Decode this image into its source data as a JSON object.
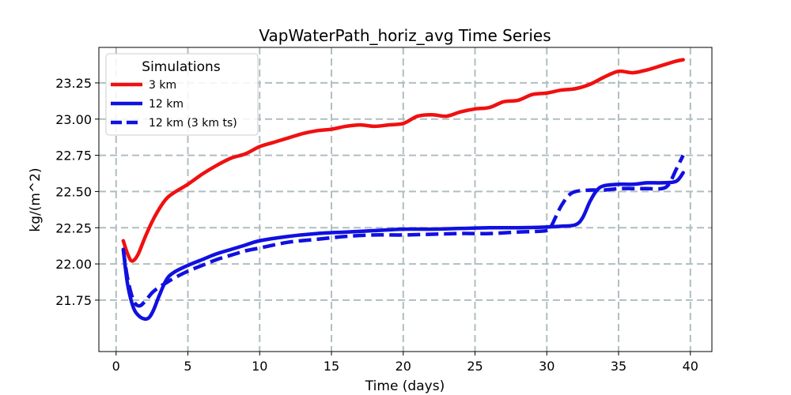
{
  "chart_data": {
    "type": "line",
    "title": "VapWaterPath_horiz_avg Time Series",
    "xlabel": "Time (days)",
    "ylabel": "kg/(m^2)",
    "xlim": [
      -1.2,
      41.5
    ],
    "ylim": [
      21.395,
      23.495
    ],
    "xticks": [
      0,
      5,
      10,
      15,
      20,
      25,
      30,
      35,
      40
    ],
    "yticks": [
      21.75,
      22.0,
      22.25,
      22.5,
      22.75,
      23.0,
      23.25
    ],
    "ytick_labels": [
      "21.75",
      "22.00",
      "22.25",
      "22.50",
      "22.75",
      "23.00",
      "23.25"
    ],
    "grid": true,
    "legend": {
      "title": "Simulations",
      "position": "top-left"
    },
    "series": [
      {
        "name": "3 km",
        "color": "#f01010",
        "style": "solid",
        "x": [
          0.5,
          0.8,
          1.1,
          1.5,
          2.0,
          2.5,
          3.0,
          3.5,
          4.0,
          5.0,
          6.0,
          7.0,
          8.0,
          9.0,
          10.0,
          11.0,
          12.0,
          13.0,
          14.0,
          15.0,
          16.0,
          17.0,
          18.0,
          19.0,
          20.0,
          21.0,
          22.0,
          23.0,
          24.0,
          25.0,
          26.0,
          27.0,
          28.0,
          29.0,
          30.0,
          31.0,
          32.0,
          33.0,
          34.0,
          35.0,
          36.0,
          37.0,
          38.0,
          39.0,
          39.5
        ],
        "y": [
          22.16,
          22.07,
          22.02,
          22.06,
          22.18,
          22.29,
          22.38,
          22.45,
          22.49,
          22.55,
          22.62,
          22.68,
          22.73,
          22.76,
          22.81,
          22.84,
          22.87,
          22.9,
          22.92,
          22.93,
          22.95,
          22.96,
          22.95,
          22.96,
          22.97,
          23.02,
          23.03,
          23.02,
          23.05,
          23.07,
          23.08,
          23.12,
          23.13,
          23.17,
          23.18,
          23.2,
          23.21,
          23.24,
          23.29,
          23.33,
          23.32,
          23.34,
          23.37,
          23.4,
          23.41
        ]
      },
      {
        "name": "12 km",
        "color": "#1010e0",
        "style": "solid",
        "x": [
          0.5,
          0.8,
          1.2,
          1.6,
          2.0,
          2.3,
          2.6,
          3.0,
          3.5,
          4.0,
          5.0,
          6.0,
          7.0,
          8.0,
          9.0,
          10.0,
          12.0,
          14.0,
          16.0,
          18.0,
          20.0,
          22.0,
          24.0,
          26.0,
          28.0,
          30.0,
          31.0,
          32.0,
          32.5,
          33.0,
          33.5,
          34.0,
          35.0,
          36.0,
          37.0,
          38.0,
          39.0,
          39.5
        ],
        "y": [
          22.1,
          21.86,
          21.7,
          21.64,
          21.62,
          21.63,
          21.68,
          21.78,
          21.89,
          21.94,
          21.99,
          22.03,
          22.07,
          22.1,
          22.13,
          22.16,
          22.19,
          22.21,
          22.22,
          22.23,
          22.24,
          22.24,
          22.245,
          22.25,
          22.25,
          22.255,
          22.26,
          22.27,
          22.32,
          22.43,
          22.51,
          22.54,
          22.55,
          22.55,
          22.56,
          22.56,
          22.57,
          22.63
        ]
      },
      {
        "name": "12 km (3 km ts)",
        "color": "#1010e0",
        "style": "dashed",
        "x": [
          0.5,
          0.8,
          1.2,
          1.6,
          2.0,
          2.5,
          3.0,
          3.5,
          4.0,
          5.0,
          6.0,
          7.0,
          8.0,
          9.0,
          10.0,
          12.0,
          14.0,
          16.0,
          18.0,
          20.0,
          22.0,
          24.0,
          26.0,
          28.0,
          30.0,
          30.3,
          30.6,
          31.0,
          31.5,
          32.0,
          33.0,
          34.0,
          35.0,
          36.0,
          37.0,
          38.0,
          38.5,
          39.0,
          39.5
        ],
        "y": [
          22.1,
          21.9,
          21.75,
          21.71,
          21.74,
          21.8,
          21.84,
          21.87,
          21.9,
          21.95,
          21.99,
          22.03,
          22.06,
          22.09,
          22.11,
          22.15,
          22.17,
          22.19,
          22.2,
          22.2,
          22.205,
          22.21,
          22.21,
          22.22,
          22.23,
          22.26,
          22.32,
          22.4,
          22.47,
          22.5,
          22.51,
          22.51,
          22.52,
          22.52,
          22.52,
          22.52,
          22.55,
          22.65,
          22.75
        ]
      }
    ]
  }
}
